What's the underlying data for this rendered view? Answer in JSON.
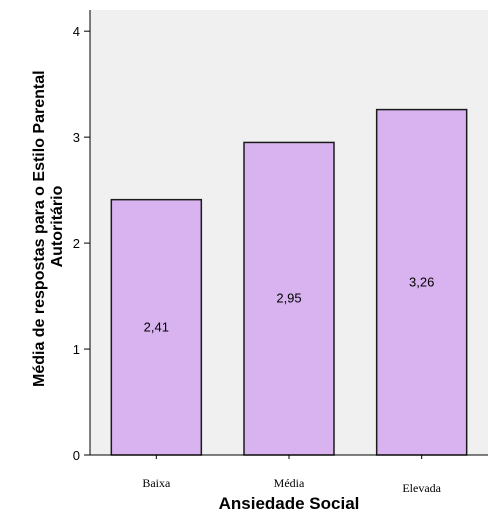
{
  "chart_data": {
    "type": "bar",
    "categories": [
      "Baixa",
      "Média",
      "Elevada"
    ],
    "values": [
      2.41,
      2.95,
      3.26
    ],
    "value_labels": [
      "2,41",
      "2,95",
      "3,26"
    ],
    "xlabel": "Ansiedade Social",
    "ylabel_lines": [
      "Média de respostas para o Estilo Parental",
      "Autoritário"
    ],
    "ylim": [
      0,
      4.2
    ],
    "yticks": [
      0,
      1,
      2,
      3,
      4
    ],
    "ytick_labels": [
      "0",
      "1",
      "2",
      "3",
      "4"
    ],
    "grid": false,
    "legend": "none",
    "colors": {
      "plot_background": "#f0f0f0",
      "bar_fill": "#d9b3f0",
      "bar_stroke": "#1a1a1a"
    }
  }
}
